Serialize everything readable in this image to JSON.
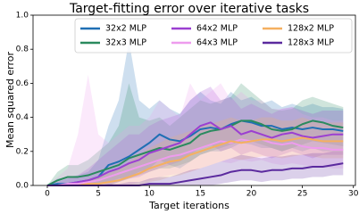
{
  "chart_data": {
    "type": "line",
    "title": "Target-fitting error over iterative tasks",
    "x_label": "Target iterations",
    "y_label": "Mean squared error",
    "xlim": [
      -1.4,
      30.2
    ],
    "ylim": [
      0,
      1
    ],
    "xticks": [
      0,
      5,
      10,
      15,
      20,
      25,
      30
    ],
    "yticks": [
      {
        "value": 0,
        "label": "0.0"
      },
      0.2,
      0.4,
      0.6,
      0.8,
      {
        "value": 1,
        "label": "1.0"
      }
    ],
    "legend": "upper right",
    "band_opacity": 0.22,
    "x": [
      0,
      1,
      2,
      3,
      4,
      5,
      6,
      7,
      8,
      9,
      10,
      11,
      12,
      13,
      14,
      15,
      16,
      17,
      18,
      19,
      20,
      21,
      22,
      23,
      24,
      25,
      26,
      27,
      28,
      29
    ],
    "series": [
      {
        "name": "32x2 MLP",
        "color": "#1f6fb4",
        "values": [
          0,
          0.01,
          0.01,
          0.02,
          0.03,
          0.05,
          0.12,
          0.14,
          0.17,
          0.21,
          0.25,
          0.3,
          0.27,
          0.26,
          0.29,
          0.33,
          0.34,
          0.33,
          0.36,
          0.38,
          0.37,
          0.35,
          0.35,
          0.33,
          0.34,
          0.33,
          0.34,
          0.33,
          0.33,
          0.32
        ],
        "lower": [
          0,
          0,
          0,
          0,
          0,
          0,
          0.02,
          0.04,
          0.05,
          0.08,
          0.1,
          0.15,
          0.12,
          0.1,
          0.14,
          0.18,
          0.2,
          0.2,
          0.22,
          0.25,
          0.24,
          0.22,
          0.22,
          0.2,
          0.22,
          0.2,
          0.22,
          0.2,
          0.2,
          0.2
        ],
        "upper": [
          0,
          0.04,
          0.05,
          0.06,
          0.08,
          0.15,
          0.35,
          0.5,
          0.85,
          0.5,
          0.45,
          0.5,
          0.45,
          0.42,
          0.5,
          0.55,
          0.5,
          0.48,
          0.55,
          0.5,
          0.52,
          0.48,
          0.5,
          0.46,
          0.48,
          0.46,
          0.48,
          0.46,
          0.46,
          0.45
        ]
      },
      {
        "name": "32x3 MLP",
        "color": "#2a8a5e",
        "values": [
          0,
          0.03,
          0.05,
          0.05,
          0.06,
          0.08,
          0.1,
          0.12,
          0.16,
          0.18,
          0.2,
          0.22,
          0.21,
          0.23,
          0.25,
          0.3,
          0.32,
          0.33,
          0.35,
          0.38,
          0.38,
          0.36,
          0.33,
          0.32,
          0.33,
          0.36,
          0.38,
          0.37,
          0.35,
          0.34
        ],
        "lower": [
          0,
          0,
          0,
          0,
          0,
          0,
          0,
          0.02,
          0.04,
          0.06,
          0.08,
          0.1,
          0.1,
          0.12,
          0.14,
          0.18,
          0.2,
          0.22,
          0.24,
          0.26,
          0.26,
          0.24,
          0.22,
          0.2,
          0.22,
          0.24,
          0.26,
          0.25,
          0.24,
          0.23
        ],
        "upper": [
          0,
          0.08,
          0.12,
          0.12,
          0.15,
          0.2,
          0.25,
          0.35,
          0.6,
          0.4,
          0.38,
          0.4,
          0.35,
          0.4,
          0.45,
          0.5,
          0.48,
          0.5,
          0.52,
          0.6,
          0.55,
          0.5,
          0.45,
          0.44,
          0.45,
          0.5,
          0.52,
          0.5,
          0.48,
          0.46
        ]
      },
      {
        "name": "64x2 MLP",
        "color": "#9b3fd1",
        "values": [
          0,
          0,
          0.01,
          0.02,
          0.03,
          0.05,
          0.08,
          0.1,
          0.13,
          0.15,
          0.19,
          0.21,
          0.23,
          0.25,
          0.3,
          0.35,
          0.37,
          0.33,
          0.35,
          0.3,
          0.32,
          0.3,
          0.28,
          0.3,
          0.31,
          0.29,
          0.28,
          0.29,
          0.3,
          0.3
        ],
        "lower": [
          0,
          0,
          0,
          0,
          0,
          0,
          0,
          0.02,
          0.04,
          0.05,
          0.08,
          0.1,
          0.12,
          0.14,
          0.18,
          0.22,
          0.24,
          0.2,
          0.22,
          0.18,
          0.2,
          0.18,
          0.16,
          0.18,
          0.2,
          0.18,
          0.16,
          0.18,
          0.18,
          0.18
        ],
        "upper": [
          0,
          0.02,
          0.04,
          0.06,
          0.1,
          0.15,
          0.2,
          0.25,
          0.3,
          0.3,
          0.35,
          0.38,
          0.4,
          0.42,
          0.5,
          0.55,
          0.58,
          0.5,
          0.52,
          0.45,
          0.48,
          0.45,
          0.42,
          0.45,
          0.46,
          0.44,
          0.42,
          0.44,
          0.44,
          0.44
        ]
      },
      {
        "name": "64x3 MLP",
        "color": "#ee9cee",
        "values": [
          0,
          0,
          0.01,
          0.01,
          0.02,
          0.03,
          0.05,
          0.07,
          0.09,
          0.11,
          0.13,
          0.15,
          0.17,
          0.18,
          0.2,
          0.22,
          0.24,
          0.26,
          0.25,
          0.27,
          0.26,
          0.27,
          0.25,
          0.24,
          0.25,
          0.23,
          0.22,
          0.22,
          0.21,
          0.21
        ],
        "lower": [
          0,
          0,
          0,
          0,
          0,
          0,
          0,
          0,
          0,
          0.02,
          0.03,
          0.05,
          0.06,
          0.07,
          0.08,
          0.1,
          0.12,
          0.14,
          0.13,
          0.15,
          0.14,
          0.15,
          0.13,
          0.12,
          0.13,
          0.12,
          0.11,
          0.11,
          0.1,
          0.1
        ],
        "upper": [
          0,
          0.05,
          0.1,
          0.3,
          0.65,
          0.3,
          0.25,
          0.3,
          0.35,
          0.35,
          0.4,
          0.5,
          0.45,
          0.4,
          0.6,
          0.5,
          0.55,
          0.6,
          0.5,
          0.55,
          0.5,
          0.5,
          0.45,
          0.45,
          0.46,
          0.42,
          0.4,
          0.4,
          0.38,
          0.38
        ]
      },
      {
        "name": "128x2 MLP",
        "color": "#f5b060",
        "values": [
          0,
          0,
          0,
          0,
          0.01,
          0.01,
          0.02,
          0.03,
          0.05,
          0.07,
          0.1,
          0.12,
          0.14,
          0.15,
          0.18,
          0.2,
          0.22,
          0.24,
          0.26,
          0.25,
          0.26,
          0.27,
          0.27,
          0.26,
          0.27,
          0.28,
          0.27,
          0.26,
          0.26,
          0.26
        ],
        "lower": [
          0,
          0,
          0,
          0,
          0,
          0,
          0,
          0,
          0,
          0,
          0.02,
          0.03,
          0.05,
          0.06,
          0.08,
          0.1,
          0.12,
          0.14,
          0.16,
          0.15,
          0.16,
          0.17,
          0.17,
          0.16,
          0.17,
          0.18,
          0.17,
          0.16,
          0.16,
          0.16
        ],
        "upper": [
          0,
          0,
          0.01,
          0.02,
          0.04,
          0.05,
          0.08,
          0.1,
          0.14,
          0.18,
          0.22,
          0.25,
          0.28,
          0.3,
          0.32,
          0.35,
          0.36,
          0.38,
          0.4,
          0.38,
          0.38,
          0.4,
          0.4,
          0.38,
          0.38,
          0.4,
          0.38,
          0.37,
          0.37,
          0.37
        ]
      },
      {
        "name": "128x3 MLP",
        "color": "#5b2a9e",
        "values": [
          0,
          0,
          0,
          0,
          0,
          0,
          0,
          0,
          0,
          0,
          0.01,
          0.01,
          0.01,
          0.02,
          0.03,
          0.04,
          0.05,
          0.06,
          0.08,
          0.09,
          0.09,
          0.08,
          0.09,
          0.09,
          0.1,
          0.1,
          0.11,
          0.11,
          0.12,
          0.13
        ],
        "lower": [
          0,
          0,
          0,
          0,
          0,
          0,
          0,
          0,
          0,
          0,
          0,
          0,
          0,
          0,
          0,
          0,
          0,
          0.01,
          0.02,
          0.03,
          0.03,
          0.02,
          0.03,
          0.03,
          0.04,
          0.04,
          0.05,
          0.05,
          0.06,
          0.06
        ],
        "upper": [
          0,
          0,
          0,
          0,
          0,
          0,
          0.01,
          0.01,
          0.02,
          0.02,
          0.04,
          0.05,
          0.05,
          0.07,
          0.09,
          0.1,
          0.12,
          0.14,
          0.16,
          0.18,
          0.17,
          0.16,
          0.17,
          0.17,
          0.18,
          0.18,
          0.19,
          0.19,
          0.2,
          0.2
        ]
      }
    ]
  }
}
